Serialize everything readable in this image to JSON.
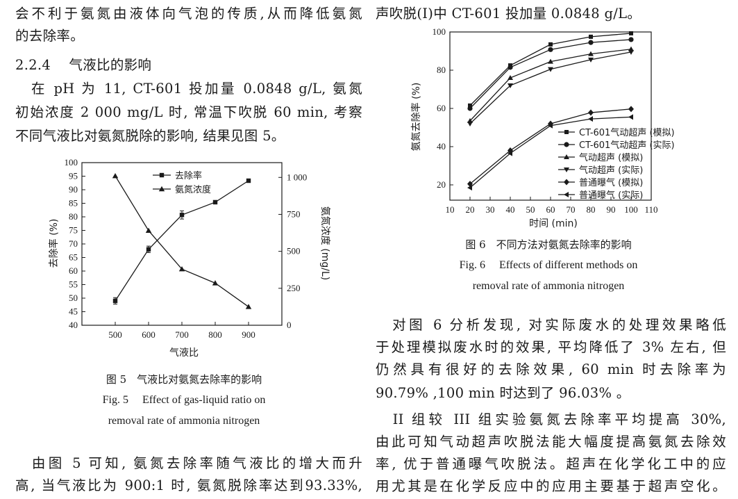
{
  "left_col": {
    "lines_top": [
      "会不利于氨氮由液体向气泡的传质,从而降低氨氮",
      "的去除率。"
    ],
    "section_heading": "2.2.4　 气液比的影响",
    "para": [
      "　在 pH 为 11, CT-601 投加量 0.0848 g/L, 氨氮",
      "初始浓度 2 000 mg/L 时, 常温下吹脱 60 min, 考察",
      "不同气液比对氨氮脱除的影响, 结果见图 5。"
    ],
    "fig5_caption_cn": "图 5　气液比对氨氮去除率的影响",
    "fig5_caption_en_1": "Fig. 5　 Effect of gas-liquid ratio on",
    "fig5_caption_en_2": "removal rate of ammonia nitrogen",
    "lines_bottom": [
      "　由图 5 可知, 氨氮去除率随气液比的增大而升",
      "高, 当气液比为 900:1 时, 氨氮脱除率达到93.33%,"
    ]
  },
  "right_col": {
    "line_top": "声吹脱(I)中 CT-601 投加量 0.0848 g/L。",
    "fig6_caption_cn": "图 6　不同方法对氨氮去除率的影响",
    "fig6_caption_en_1": "Fig. 6　 Effects of different methods on",
    "fig6_caption_en_2": "removal rate of ammonia nitrogen",
    "para1": [
      "　对图 6 分析发现, 对实际废水的处理效果略低",
      "于处理模拟废水时的效果, 平均降低了 3% 左右, 但",
      "仍然具有很好的去除效果, 60 min 时去除率为",
      "90.79% ,100 min 时达到了 96.03% 。"
    ],
    "para2": [
      "　II 组较 III 组实验氨氮去除率平均提高 30%,",
      "由此可知气动超声吹脱法能大幅度提高氨氮去除效",
      "率, 优于普通曝气吹脱法。超声在化学化工中的应",
      "用尤其是在化学反应中的应用主要基于超声空化。"
    ]
  },
  "chart_data": [
    {
      "type": "line",
      "figure": "图 5",
      "xlabel": "气液比",
      "ylabel": "去除率 (%)",
      "y2label": "氨氮浓度 (mg/L)",
      "x": [
        500,
        600,
        700,
        800,
        900
      ],
      "xticks": [
        "500",
        "600",
        "700",
        "800",
        "900"
      ],
      "xlim": [
        400,
        1000
      ],
      "ylim": [
        40,
        100
      ],
      "yticks": [
        "40",
        "45",
        "50",
        "55",
        "60",
        "65",
        "70",
        "75",
        "80",
        "85",
        "90",
        "95",
        "100"
      ],
      "y2lim": [
        0,
        1100
      ],
      "y2ticks": [
        "0",
        "250",
        "500",
        "750",
        "1 000"
      ],
      "legend_position": "top-center",
      "series": [
        {
          "name": "去除率",
          "marker": "square",
          "axis": "left",
          "values": [
            49,
            68,
            80.7,
            85.4,
            93.33
          ],
          "errors": [
            1.2,
            1.2,
            1.5,
            0,
            0
          ]
        },
        {
          "name": "氨氮浓度",
          "marker": "triangle-up",
          "axis": "right",
          "values": [
            1010,
            640,
            380,
            285,
            125
          ]
        }
      ]
    },
    {
      "type": "line",
      "figure": "图 6",
      "xlabel": "时间 (min)",
      "ylabel": "氨氮去除率 (%)",
      "x": [
        20,
        40,
        60,
        80,
        100
      ],
      "xticks": [
        "10",
        "20",
        "30",
        "40",
        "50",
        "60",
        "70",
        "80",
        "90",
        "100",
        "110"
      ],
      "xlim": [
        10,
        110
      ],
      "ylim": [
        12,
        100
      ],
      "yticks": [
        "20",
        "40",
        "60",
        "80",
        "100"
      ],
      "legend_position": "bottom-right",
      "series": [
        {
          "name": "CT-601气动超声 (模拟)",
          "marker": "square",
          "values": [
            61.5,
            82.5,
            93.5,
            97.5,
            99.3
          ]
        },
        {
          "name": "CT-601气动超声 (实际)",
          "marker": "circle",
          "values": [
            60,
            81.5,
            90.79,
            94.5,
            96.03
          ]
        },
        {
          "name": "气动超声 (模拟)",
          "marker": "triangle-up",
          "values": [
            53.5,
            76,
            84.5,
            88.5,
            91
          ]
        },
        {
          "name": "气动超声 (实际)",
          "marker": "triangle-down",
          "values": [
            52,
            72,
            80.5,
            85.5,
            89.5
          ]
        },
        {
          "name": "普通曝气 (模拟)",
          "marker": "diamond",
          "values": [
            20.5,
            38,
            52,
            57.8,
            59.7
          ]
        },
        {
          "name": "普通曝气 (实际)",
          "marker": "triangle-left",
          "values": [
            18.5,
            36.5,
            51,
            54.5,
            55.5
          ]
        }
      ]
    }
  ]
}
